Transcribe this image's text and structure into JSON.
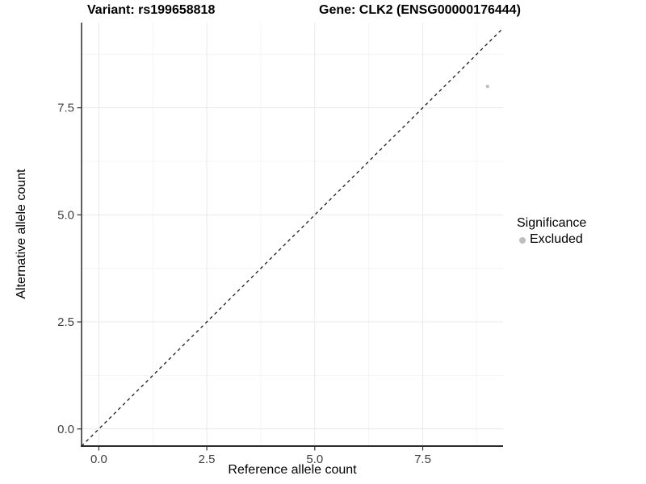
{
  "figure": {
    "title_left": "Variant: rs199658818",
    "title_right": "Gene: CLK2 (ENSG00000176444)"
  },
  "chart_data": {
    "type": "scatter",
    "title": "Variant: rs199658818   Gene: CLK2 (ENSG00000176444)",
    "xlabel": "Reference allele count",
    "ylabel": "Alternative allele count",
    "xlim": [
      -0.4,
      9.36
    ],
    "ylim": [
      -0.4,
      9.49
    ],
    "x_major_ticks": [
      0.0,
      2.5,
      5.0,
      7.5
    ],
    "x_tick_labels": [
      "0.0",
      "2.5",
      "5.0",
      "7.5"
    ],
    "y_major_ticks": [
      0.0,
      2.5,
      5.0,
      7.5
    ],
    "y_tick_labels": [
      "0.0",
      "2.5",
      "5.0",
      "7.5"
    ],
    "x_minor_ticks": [
      1.25,
      3.75,
      6.25,
      8.75
    ],
    "y_minor_ticks": [
      1.25,
      3.75,
      6.25,
      8.75
    ],
    "grid": true,
    "series": [
      {
        "name": "Excluded",
        "color": "#c1c1c1",
        "point_radius": 2.2,
        "points": [
          {
            "x": 9,
            "y": 8
          }
        ]
      }
    ],
    "reference_line": {
      "type": "identity",
      "slope": 1,
      "intercept": 0,
      "style": "dashed",
      "color": "#1a1a1a"
    },
    "legend": {
      "title": "Significance",
      "position": "right",
      "entries": [
        {
          "label": "Excluded",
          "color": "#bebebe"
        }
      ]
    }
  },
  "colors": {
    "background": "#ffffff",
    "axis_line": "#2b2b2b",
    "tick_mark": "#333333",
    "tick_label": "#404040",
    "grid_major": "#e9e9e9",
    "grid_minor": "#f4f4f4"
  }
}
